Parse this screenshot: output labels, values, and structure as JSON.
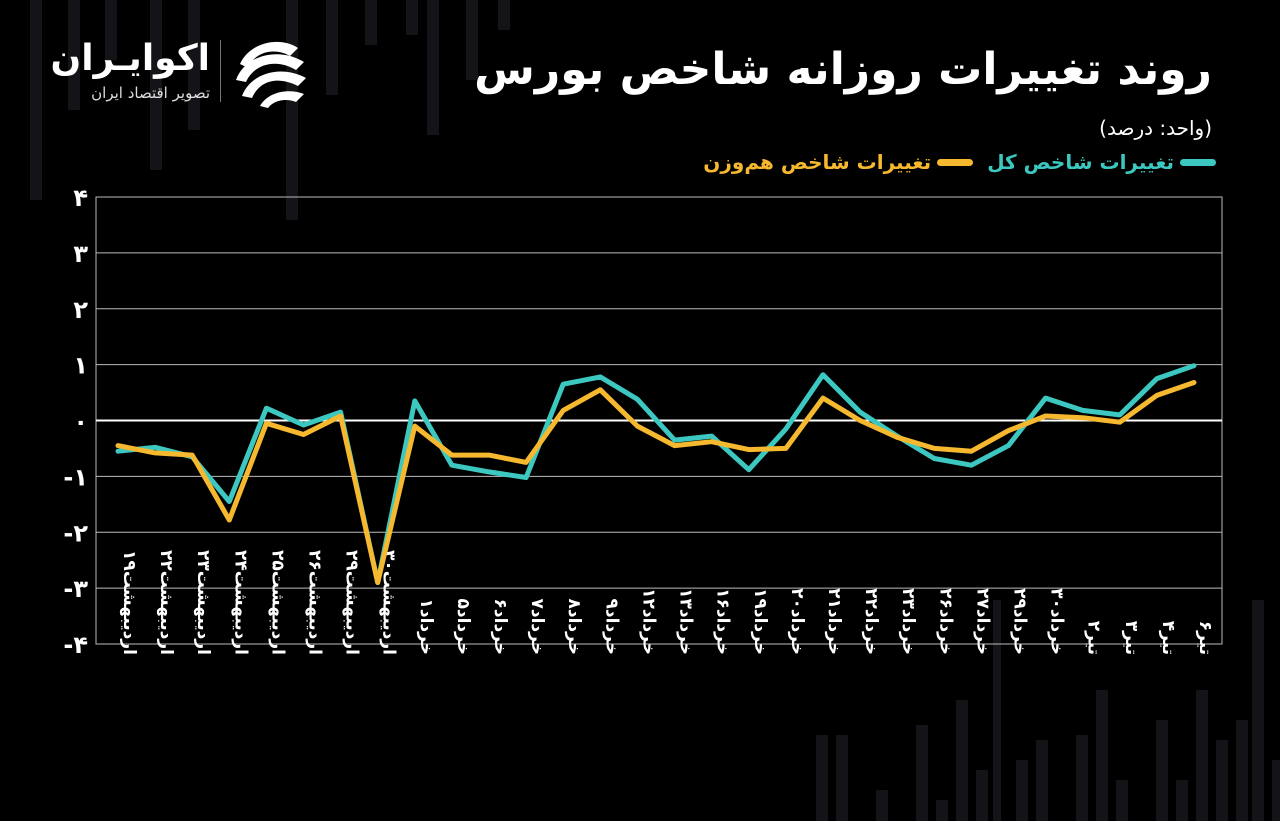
{
  "title": "روند تغییرات روزانه شاخص بورس",
  "unit_label": "(واحد: درصد)",
  "brand": {
    "name": "اکوایـران",
    "tagline": "تصویر اقتصاد ایران",
    "logo_icon": "ecoiran-logo-icon"
  },
  "colors": {
    "background": "#000000",
    "total_index": "#3CC8C0",
    "equal_weight": "#F5B82E",
    "grid": "#bbbbbb"
  },
  "chart_data": {
    "type": "line",
    "title": "روند تغییرات روزانه شاخص بورس",
    "ylabel": "",
    "xlabel": "",
    "ylim": [
      -4,
      4
    ],
    "yticks": [
      "۴",
      "۳",
      "۲",
      "۱",
      "۰",
      "-۱",
      "-۲",
      "-۳",
      "-۴"
    ],
    "ytick_values": [
      4,
      3,
      2,
      1,
      0,
      -1,
      -2,
      -3,
      -4
    ],
    "grid": true,
    "legend": "top-right",
    "categories": [
      "اردیبهشت۱۹",
      "اردیبهشت۲۲",
      "اردیبهشت۲۳",
      "اردیبهشت۲۴",
      "اردیبهشت۲۵",
      "اردیبهشت۲۶",
      "اردیبهشت۲۹",
      "اردیبهشت۳۰",
      "خرداد۱",
      "خرداد۵",
      "خرداد۶",
      "خرداد۷",
      "خرداد۸",
      "خرداد۹",
      "خرداد۱۲",
      "خرداد۱۳",
      "خرداد۱۶",
      "خرداد۱۹",
      "خرداد۲۰",
      "خرداد۲۱",
      "خرداد۲۲",
      "خرداد۲۳",
      "خرداد۲۶",
      "خرداد۲۷",
      "خرداد۲۹",
      "خرداد۳۰",
      "تیر۲",
      "تیر۳",
      "تیر۴",
      "تیر۶"
    ],
    "series": [
      {
        "name": "تغییرات شاخص کل",
        "color": "#3CC8C0",
        "values": [
          -0.55,
          -0.48,
          -0.65,
          -1.45,
          0.22,
          -0.08,
          0.15,
          -2.9,
          0.35,
          -0.8,
          -0.92,
          -1.02,
          0.65,
          0.78,
          0.38,
          -0.35,
          -0.28,
          -0.88,
          -0.15,
          0.82,
          0.15,
          -0.28,
          -0.68,
          -0.8,
          -0.45,
          0.4,
          0.18,
          0.1,
          0.75,
          0.98
        ]
      },
      {
        "name": "تغییرات شاخص هم‌وزن",
        "color": "#F5B82E",
        "values": [
          -0.45,
          -0.58,
          -0.62,
          -1.78,
          -0.05,
          -0.25,
          0.08,
          -2.9,
          -0.1,
          -0.62,
          -0.62,
          -0.75,
          0.18,
          0.55,
          -0.1,
          -0.45,
          -0.38,
          -0.52,
          -0.5,
          0.4,
          0.0,
          -0.3,
          -0.5,
          -0.55,
          -0.18,
          0.08,
          0.05,
          -0.03,
          0.45,
          0.68
        ]
      }
    ]
  }
}
